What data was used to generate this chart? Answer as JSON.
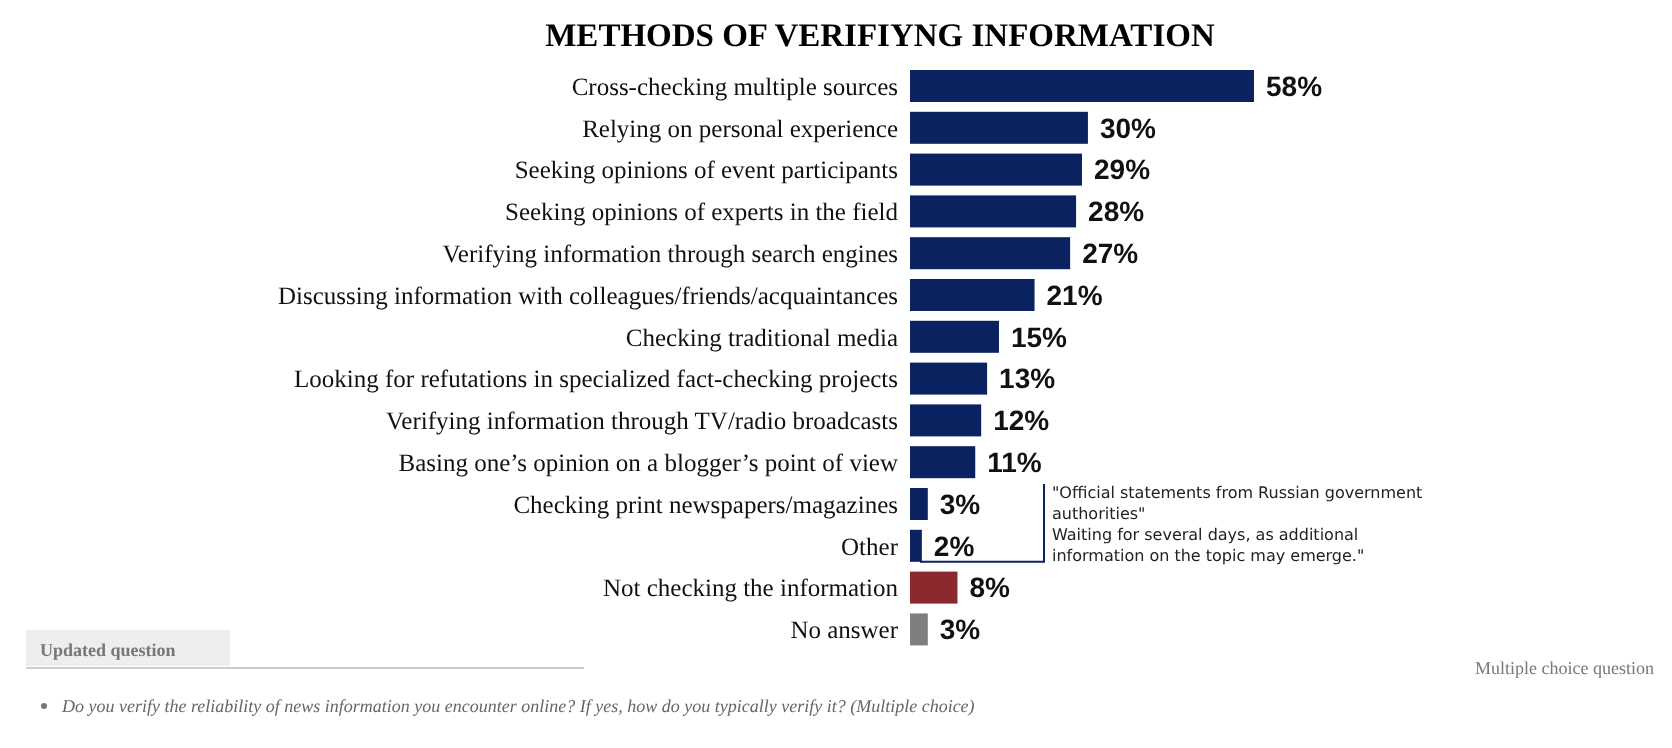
{
  "chart_data": {
    "type": "bar",
    "orientation": "horizontal",
    "relative": false,
    "title": "METHODS OF VERIFIYNG INFORMATION",
    "categories": [
      "Cross-checking multiple sources",
      "Relying on personal experience",
      "Seeking opinions of event participants",
      "Seeking opinions of experts in the field",
      "Verifying information through search engines",
      "Discussing information with colleagues/friends/acquaintances",
      "Checking traditional media",
      "Looking for refutations in specialized fact-checking projects",
      "Verifying information through TV/radio broadcasts",
      "Basing one’s opinion on a blogger’s point of view",
      "Checking print newspapers/magazines",
      "Other",
      "Not checking the information",
      "No answer"
    ],
    "values": [
      58,
      30,
      29,
      28,
      27,
      21,
      15,
      13,
      12,
      11,
      3,
      2,
      8,
      3
    ],
    "value_labels": [
      "58%",
      "30%",
      "29%",
      "28%",
      "27%",
      "21%",
      "15%",
      "13%",
      "12%",
      "11%",
      "3%",
      "2%",
      "8%",
      "3%"
    ],
    "colors": [
      "#0b2260",
      "#0b2260",
      "#0b2260",
      "#0b2260",
      "#0b2260",
      "#0b2260",
      "#0b2260",
      "#0b2260",
      "#0b2260",
      "#0b2260",
      "#0b2260",
      "#0b2260",
      "#8b2a2e",
      "#7f7f7f"
    ],
    "annotations": [
      "\"Official statements from Russian government authorities\"",
      "Waiting for several days, as additional information on the topic may emerge.\"",
      "Updated question",
      "Multiple choice question",
      "Do you verify the reliability of news information you encounter online? If yes, how do you typically verify it? (Multiple choice)"
    ]
  }
}
